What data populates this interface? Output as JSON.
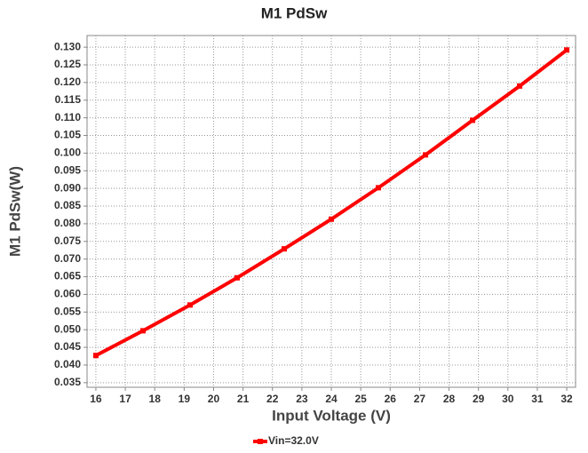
{
  "chart_data": {
    "type": "line",
    "title": "M1 PdSw",
    "x_label": "Input Voltage (V)",
    "y_label": "M1 PdSw(W)",
    "x": [
      16,
      17.6,
      19.2,
      20.8,
      22.4,
      24,
      25.6,
      27.2,
      28.8,
      30.4,
      32
    ],
    "series": [
      {
        "name": "Vin=32.0V",
        "color": "#ff0000",
        "values": [
          0.0427,
          0.0497,
          0.057,
          0.0647,
          0.0729,
          0.0813,
          0.0902,
          0.0995,
          0.1093,
          0.119,
          0.1292
        ]
      }
    ],
    "xlim": [
      15.7,
      32.3
    ],
    "xticks": [
      16,
      17,
      18,
      19,
      20,
      21,
      22,
      23,
      24,
      25,
      26,
      27,
      28,
      29,
      30,
      31,
      32
    ],
    "ylim": [
      0.0337,
      0.1333
    ],
    "yticks": [
      0.035,
      {
        "value": 0.04,
        "label": "0.040"
      },
      0.045,
      {
        "value": 0.05,
        "label": "0.050"
      },
      0.055,
      {
        "value": 0.06,
        "label": "0.060"
      },
      0.065,
      {
        "value": 0.07,
        "label": "0.070"
      },
      0.075,
      {
        "value": 0.08,
        "label": "0.080"
      },
      0.085,
      {
        "value": 0.09,
        "label": "0.090"
      },
      0.095,
      {
        "value": 0.1,
        "label": "0.100"
      },
      0.105,
      {
        "value": 0.11,
        "label": "0.110"
      },
      0.115,
      {
        "value": 0.12,
        "label": "0.120"
      },
      0.125,
      {
        "value": 0.13,
        "label": "0.130"
      }
    ],
    "grid": true,
    "legend": "bottom"
  }
}
